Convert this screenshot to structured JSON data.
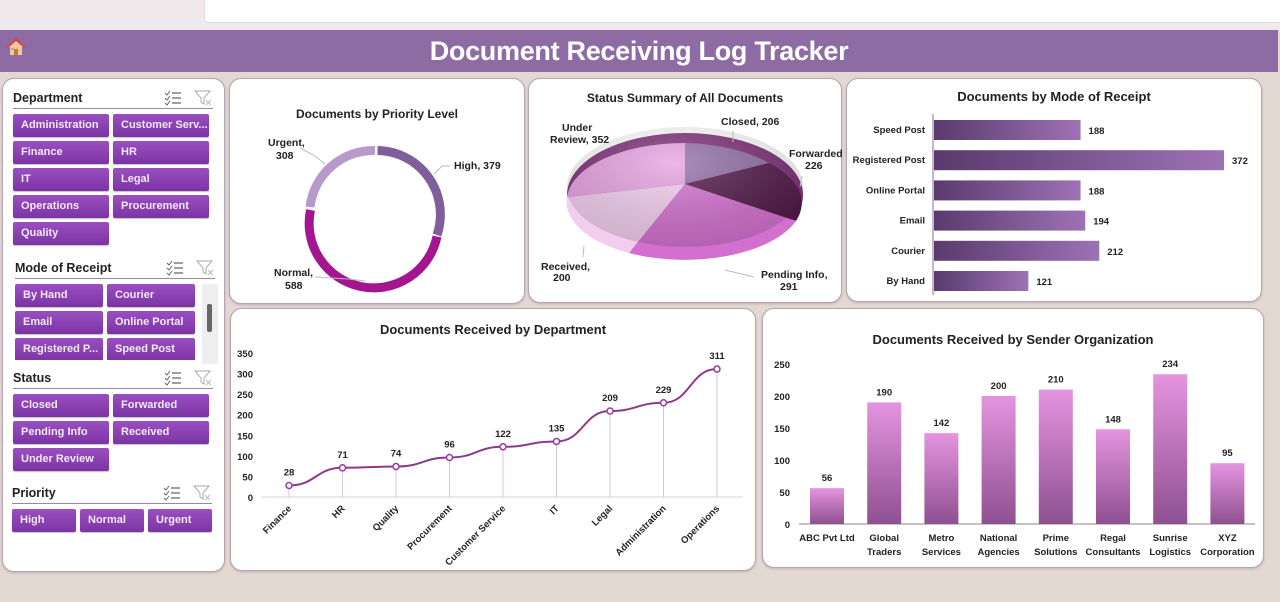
{
  "header": {
    "title": "Document Receiving Log Tracker",
    "home_icon": "home-icon"
  },
  "slicers": {
    "department": {
      "label": "Department",
      "items": [
        "Administration",
        "Customer Serv...",
        "Finance",
        "HR",
        "IT",
        "Legal",
        "Operations",
        "Procurement",
        "Quality"
      ]
    },
    "mode": {
      "label": "Mode of Receipt",
      "items": [
        "By Hand",
        "Courier",
        "Email",
        "Online Portal",
        "Registered P...",
        "Speed Post"
      ]
    },
    "status": {
      "label": "Status",
      "items": [
        "Closed",
        "Forwarded",
        "Pending Info",
        "Received",
        "Under Review"
      ]
    },
    "priority": {
      "label": "Priority",
      "items": [
        "High",
        "Normal",
        "Urgent"
      ]
    }
  },
  "colors": {
    "header": "#8e6ba3",
    "slicer_button": "#8a3fb3",
    "background": "#e3d8d2"
  },
  "chart_data": [
    {
      "type": "pie",
      "subtype": "doughnut",
      "title": "Documents by Priority Level",
      "categories": [
        "High",
        "Normal",
        "Urgent"
      ],
      "values": [
        379,
        588,
        308
      ],
      "labels": [
        "High, 379",
        "Normal,",
        "588",
        "Urgent,",
        "308"
      ],
      "colors": [
        "#7f5f99",
        "#a4168f",
        "#b79acb"
      ]
    },
    {
      "type": "pie",
      "subtype": "3d-pie",
      "title": "Status Summary of All Documents",
      "categories": [
        "Closed",
        "Forwarded",
        "Pending Info",
        "Received",
        "Under Review"
      ],
      "values": [
        206,
        226,
        291,
        200,
        352
      ],
      "labels": [
        "Closed, 206",
        "Forwarded,",
        "226",
        "Pending Info,",
        "291",
        "Received,",
        "200",
        "Under",
        "Review, 352"
      ],
      "colors": [
        "#8e6ba3",
        "#4f1447",
        "#d36fcf",
        "#f3cdee",
        "#e5a0df"
      ]
    },
    {
      "type": "bar",
      "orientation": "horizontal",
      "title": "Documents by Mode of Receipt",
      "categories": [
        "Speed Post",
        "Registered Post",
        "Online Portal",
        "Email",
        "Courier",
        "By Hand"
      ],
      "values": [
        188,
        372,
        188,
        194,
        212,
        121
      ],
      "labels": [
        "188",
        "372",
        "188",
        "194",
        "212",
        "121"
      ]
    },
    {
      "type": "line",
      "title": "Documents Received by Department",
      "categories": [
        "Finance",
        "HR",
        "Quality",
        "Procurement",
        "Customer Service",
        "IT",
        "Legal",
        "Administration",
        "Operations"
      ],
      "values": [
        28,
        71,
        74,
        96,
        122,
        135,
        209,
        229,
        311
      ],
      "labels": [
        "28",
        "71",
        "74",
        "96",
        "122",
        "135",
        "209",
        "229",
        "311"
      ],
      "yticks": [
        "350",
        "300",
        "250",
        "200",
        "150",
        "100",
        "50",
        "0"
      ],
      "ylim": [
        0,
        350
      ]
    },
    {
      "type": "bar",
      "title": "Documents Received by Sender Organization",
      "categories": [
        "ABC Pvt Ltd",
        "Global Traders",
        "Metro Services",
        "National Agencies",
        "Prime Solutions",
        "Regal Consultants",
        "Sunrise Logistics",
        "XYZ Corporation"
      ],
      "cat_lines": [
        [
          "ABC Pvt Ltd",
          ""
        ],
        [
          "Global",
          "Traders"
        ],
        [
          "Metro",
          "Services"
        ],
        [
          "National",
          "Agencies"
        ],
        [
          "Prime",
          "Solutions"
        ],
        [
          "Regal",
          "Consultants"
        ],
        [
          "Sunrise",
          "Logistics"
        ],
        [
          "XYZ",
          "Corporation"
        ]
      ],
      "values": [
        56,
        190,
        142,
        200,
        210,
        148,
        234,
        95
      ],
      "labels": [
        "56",
        "190",
        "142",
        "200",
        "210",
        "148",
        "234",
        "95"
      ],
      "yticks": [
        "250",
        "200",
        "150",
        "100",
        "50",
        "0"
      ],
      "ylim": [
        0,
        250
      ]
    }
  ]
}
